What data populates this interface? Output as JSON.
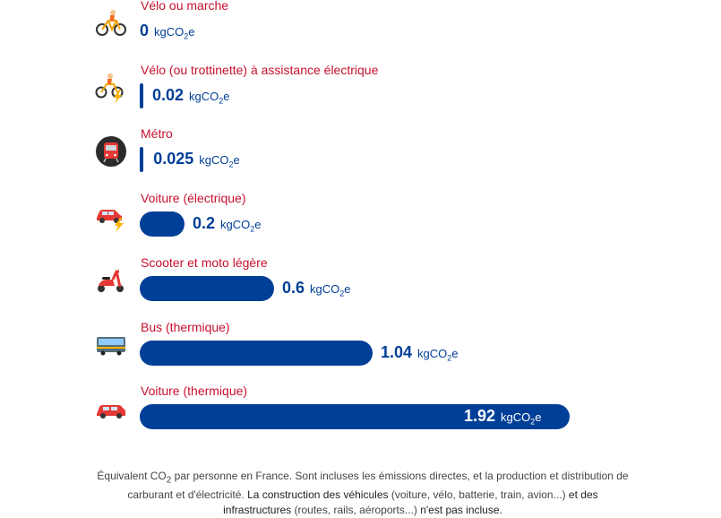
{
  "chart_data": {
    "type": "bar",
    "orientation": "horizontal",
    "unit": "kgCO2e",
    "categories": [
      "Vélo ou marche",
      "Vélo (ou trottinette) à assistance électrique",
      "Métro",
      "Voiture (électrique)",
      "Scooter et moto légère",
      "Bus (thermique)",
      "Voiture (thermique)"
    ],
    "values": [
      0,
      0.02,
      0.025,
      0.2,
      0.6,
      1.04,
      1.92
    ],
    "value_labels": [
      "0",
      "0.02",
      "0.025",
      "0.2",
      "0.6",
      "1.04",
      "1.92"
    ],
    "icons": [
      "bicycle-icon",
      "ebike-icon",
      "metro-icon",
      "electric-car-icon",
      "scooter-icon",
      "bus-icon",
      "car-icon"
    ],
    "colors": {
      "bar": "#003f97",
      "label": "#c8102e"
    }
  },
  "unit_label": {
    "prefix": "kgCO",
    "sub": "2",
    "suffix": "e"
  },
  "footnote": {
    "p1": "Équivalent CO",
    "p1_sub": "2",
    "p2": " par personne en France. Sont incluses les émissions directes, et la production et distribution de carburant et d'électricité. ",
    "p3": "La construction des véhicules",
    "p4": " (voiture, vélo, batterie, train, avion...) ",
    "p5": "et des infrastructures",
    "p6": " (routes, rails, aéroports...) ",
    "p7": "n'est pas incluse."
  }
}
